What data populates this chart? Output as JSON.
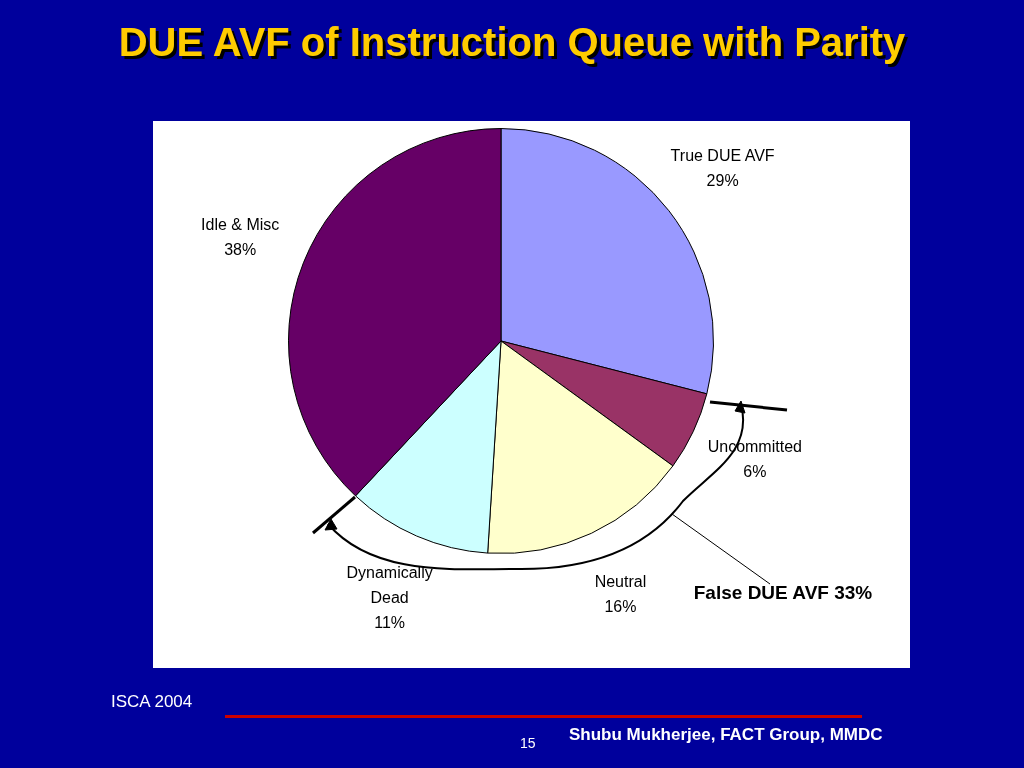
{
  "chart_data": {
    "type": "pie",
    "title": "DUE AVF of Instruction Queue with Parity",
    "categories": [
      "True DUE AVF",
      "Uncommitted",
      "Neutral",
      "Dynamically Dead",
      "Idle & Misc"
    ],
    "values": [
      29,
      6,
      16,
      11,
      38
    ],
    "value_labels": [
      "29%",
      "6%",
      "16%",
      "11%",
      "38%"
    ],
    "colors": [
      "#9999ff",
      "#993366",
      "#ffffcc",
      "#ccffff",
      "#660066"
    ],
    "legend": false,
    "annotations": [
      "False DUE AVF 33%",
      "ISCA 2004",
      "15",
      "Shubu Mukherjee, FACT Group, MMDC"
    ]
  }
}
